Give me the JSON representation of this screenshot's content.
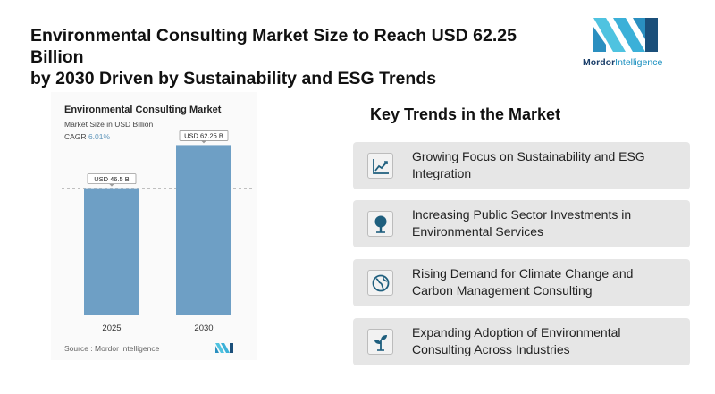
{
  "headline": {
    "line1": "Environmental Consulting Market Size to Reach USD 62.25 Billion",
    "line2": "by 2030 Driven by Sustainability and ESG Trends"
  },
  "brand": {
    "name_bold": "Mordor",
    "name_rest": "Intelligence",
    "color_light": "#4fc3e0",
    "color_dark": "#1b4f7a"
  },
  "chart": {
    "subtitle": "Market Size in USD Billion",
    "cagr_label": "CAGR",
    "cagr_value": "6.01%",
    "source": "Source : Mordor Intelligence"
  },
  "chart_data": {
    "type": "bar",
    "title": "Environmental Consulting Market",
    "categories": [
      "2025",
      "2030"
    ],
    "values": [
      46.5,
      62.25
    ],
    "data_labels": [
      "USD 46.5 B",
      "USD 62.25 B"
    ],
    "ylim": [
      0,
      65
    ],
    "grid": false,
    "bar_color": "#6e9fc5",
    "reference_line": "dashed line at first bar value"
  },
  "trends": {
    "title": "Key Trends in the Market",
    "items": [
      {
        "line1": "Growing Focus on Sustainability and ESG",
        "line2": "Integration",
        "icon": "chart-line-icon"
      },
      {
        "line1": "Increasing Public Sector Investments in",
        "line2": "Environmental Services",
        "icon": "tree-icon"
      },
      {
        "line1": "Rising Demand for Climate Change and",
        "line2": "Carbon Management Consulting",
        "icon": "globe-icon"
      },
      {
        "line1": "Expanding Adoption of Environmental",
        "line2": "Consulting Across Industries",
        "icon": "sprout-icon"
      }
    ]
  },
  "colors": {
    "icon_color": "#1f5f7e",
    "card_bg": "#e6e6e6"
  }
}
